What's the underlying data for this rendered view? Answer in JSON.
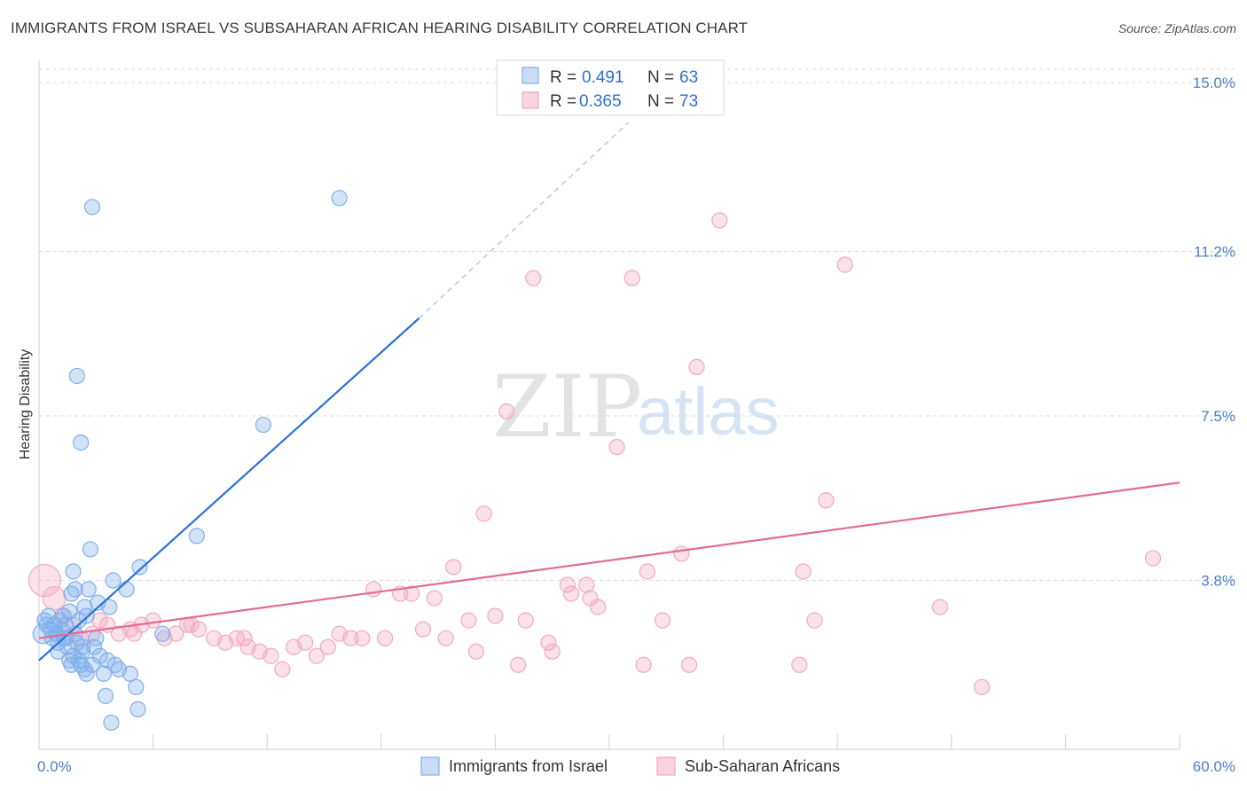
{
  "title": "IMMIGRANTS FROM ISRAEL VS SUBSAHARAN AFRICAN HEARING DISABILITY CORRELATION CHART",
  "source": "Source: ZipAtlas.com",
  "watermark": {
    "zip": "ZIP",
    "atlas": "atlas"
  },
  "colors": {
    "blue": "#7fb0ec",
    "blue_line": "#2a73d6",
    "pink": "#f4a8c0",
    "pink_line": "#e36b95",
    "tick": "#4a7fc9",
    "grid": "#d9d9d9"
  },
  "legend": {
    "rows": [
      {
        "r_label": "R =",
        "r_value": "0.491",
        "n_label": "N =",
        "n_value": "63"
      },
      {
        "r_label": "R =",
        "r_value": "0.365",
        "n_label": "N =",
        "n_value": "73"
      }
    ]
  },
  "chart_data": {
    "type": "scatter",
    "title": "IMMIGRANTS FROM ISRAEL VS SUBSAHARAN AFRICAN HEARING DISABILITY CORRELATION CHART",
    "xlabel": "",
    "ylabel": "Hearing Disability",
    "xlim": [
      0,
      60
    ],
    "ylim": [
      0,
      15.5
    ],
    "x_tick_labels": [
      "0.0%",
      "60.0%"
    ],
    "y_ticks": [
      3.8,
      7.5,
      11.2,
      15.0
    ],
    "y_tick_labels": [
      "3.8%",
      "7.5%",
      "11.2%",
      "15.0%"
    ],
    "grid": "horizontal dashed",
    "legend_position": "top-center",
    "series": [
      {
        "name": "Immigrants from Israel",
        "color": "#7fb0ec",
        "r": 0.491,
        "n": 63,
        "trend": {
          "x0": 0,
          "y0": 2.0,
          "x1": 20,
          "y1": 9.7,
          "dashed_to_x": 31,
          "dashed_to_y": 14.1
        },
        "points": [
          [
            0.2,
            2.6
          ],
          [
            0.3,
            2.9
          ],
          [
            0.4,
            2.8
          ],
          [
            0.5,
            3.0
          ],
          [
            0.6,
            2.7
          ],
          [
            0.7,
            2.5
          ],
          [
            0.8,
            2.8
          ],
          [
            0.9,
            2.6
          ],
          [
            1.0,
            2.4
          ],
          [
            1.1,
            2.9
          ],
          [
            1.2,
            2.7
          ],
          [
            1.3,
            3.0
          ],
          [
            1.4,
            2.5
          ],
          [
            1.5,
            2.3
          ],
          [
            1.6,
            2.0
          ],
          [
            1.7,
            1.9
          ],
          [
            1.8,
            2.1
          ],
          [
            1.9,
            2.6
          ],
          [
            2.0,
            2.4
          ],
          [
            2.1,
            2.0
          ],
          [
            2.2,
            1.9
          ],
          [
            2.3,
            2.2
          ],
          [
            2.4,
            1.8
          ],
          [
            2.5,
            1.7
          ],
          [
            1.0,
            2.2
          ],
          [
            1.3,
            2.5
          ],
          [
            1.6,
            3.1
          ],
          [
            1.7,
            3.5
          ],
          [
            1.8,
            4.0
          ],
          [
            1.9,
            3.6
          ],
          [
            2.0,
            8.4
          ],
          [
            2.1,
            2.9
          ],
          [
            2.2,
            6.9
          ],
          [
            2.4,
            3.2
          ],
          [
            2.5,
            3.0
          ],
          [
            2.6,
            3.6
          ],
          [
            2.7,
            4.5
          ],
          [
            2.8,
            1.9
          ],
          [
            2.9,
            2.3
          ],
          [
            3.0,
            2.5
          ],
          [
            3.1,
            3.3
          ],
          [
            3.2,
            2.1
          ],
          [
            3.4,
            1.7
          ],
          [
            3.5,
            1.2
          ],
          [
            3.6,
            2.0
          ],
          [
            3.7,
            3.2
          ],
          [
            3.8,
            0.6
          ],
          [
            3.9,
            3.8
          ],
          [
            4.0,
            1.9
          ],
          [
            4.2,
            1.8
          ],
          [
            4.6,
            3.6
          ],
          [
            4.8,
            1.7
          ],
          [
            5.1,
            1.4
          ],
          [
            5.2,
            0.9
          ],
          [
            5.3,
            4.1
          ],
          [
            2.8,
            12.2
          ],
          [
            6.5,
            2.6
          ],
          [
            8.3,
            4.8
          ],
          [
            11.8,
            7.3
          ],
          [
            15.8,
            12.4
          ],
          [
            1.4,
            2.8
          ],
          [
            0.9,
            2.6
          ],
          [
            2.3,
            2.3
          ]
        ]
      },
      {
        "name": "Sub-Saharan Africans",
        "color": "#f4a8c0",
        "r": 0.365,
        "n": 73,
        "trend": {
          "x0": 0,
          "y0": 2.5,
          "x1": 60,
          "y1": 6.0
        },
        "points": [
          [
            0.3,
            3.8
          ],
          [
            0.8,
            3.4
          ],
          [
            1.2,
            3.0
          ],
          [
            1.8,
            2.8
          ],
          [
            2.2,
            2.5
          ],
          [
            2.8,
            2.6
          ],
          [
            3.2,
            2.9
          ],
          [
            3.6,
            2.8
          ],
          [
            4.2,
            2.6
          ],
          [
            4.8,
            2.7
          ],
          [
            5.4,
            2.8
          ],
          [
            6.0,
            2.9
          ],
          [
            6.6,
            2.5
          ],
          [
            7.2,
            2.6
          ],
          [
            7.8,
            2.8
          ],
          [
            8.4,
            2.7
          ],
          [
            9.2,
            2.5
          ],
          [
            9.8,
            2.4
          ],
          [
            10.4,
            2.5
          ],
          [
            11.0,
            2.3
          ],
          [
            11.6,
            2.2
          ],
          [
            12.2,
            2.1
          ],
          [
            12.8,
            1.8
          ],
          [
            13.4,
            2.3
          ],
          [
            14.0,
            2.4
          ],
          [
            14.6,
            2.1
          ],
          [
            15.2,
            2.3
          ],
          [
            15.8,
            2.6
          ],
          [
            16.4,
            2.5
          ],
          [
            17.0,
            2.5
          ],
          [
            17.6,
            3.6
          ],
          [
            18.2,
            2.5
          ],
          [
            19.0,
            3.5
          ],
          [
            19.6,
            3.5
          ],
          [
            20.2,
            2.7
          ],
          [
            20.8,
            3.4
          ],
          [
            21.4,
            2.5
          ],
          [
            21.8,
            4.1
          ],
          [
            22.6,
            2.9
          ],
          [
            23.0,
            2.2
          ],
          [
            23.4,
            5.3
          ],
          [
            24.0,
            3.0
          ],
          [
            24.6,
            7.6
          ],
          [
            25.2,
            1.9
          ],
          [
            25.6,
            2.9
          ],
          [
            26.0,
            10.6
          ],
          [
            26.8,
            2.4
          ],
          [
            27.0,
            2.2
          ],
          [
            27.8,
            3.7
          ],
          [
            28.8,
            3.7
          ],
          [
            29.0,
            3.4
          ],
          [
            29.4,
            3.2
          ],
          [
            30.4,
            6.8
          ],
          [
            31.2,
            10.6
          ],
          [
            31.8,
            1.9
          ],
          [
            32.0,
            4.0
          ],
          [
            32.8,
            2.9
          ],
          [
            33.8,
            4.4
          ],
          [
            34.2,
            1.9
          ],
          [
            34.6,
            8.6
          ],
          [
            35.8,
            11.9
          ],
          [
            40.0,
            1.9
          ],
          [
            40.2,
            4.0
          ],
          [
            40.8,
            2.9
          ],
          [
            41.4,
            5.6
          ],
          [
            42.4,
            10.9
          ],
          [
            47.4,
            3.2
          ],
          [
            49.6,
            1.4
          ],
          [
            58.6,
            4.3
          ],
          [
            28.0,
            3.5
          ],
          [
            8.0,
            2.8
          ],
          [
            5.0,
            2.6
          ],
          [
            10.8,
            2.5
          ]
        ]
      }
    ]
  },
  "bottom_legend": {
    "items": [
      {
        "label": "Immigrants from Israel"
      },
      {
        "label": "Sub-Saharan Africans"
      }
    ]
  }
}
